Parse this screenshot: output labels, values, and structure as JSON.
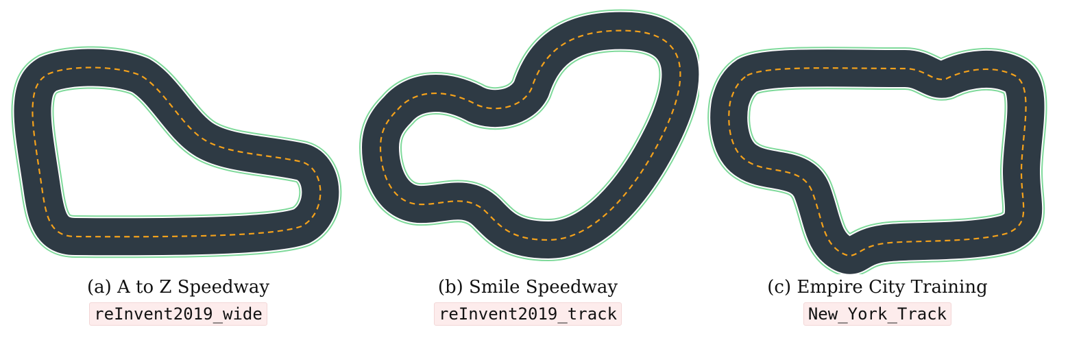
{
  "figures": [
    {
      "caption": "(a) A to Z Speedway",
      "code": "reInvent2019_wide"
    },
    {
      "caption": "(b) Smile Speedway",
      "code": "reInvent2019_track"
    },
    {
      "caption": "(c) Empire City Training",
      "code": "New_York_Track"
    }
  ],
  "colors": {
    "road": "#2e3a44",
    "center_line": "#f5a21b",
    "edge": "#7ed99a"
  }
}
